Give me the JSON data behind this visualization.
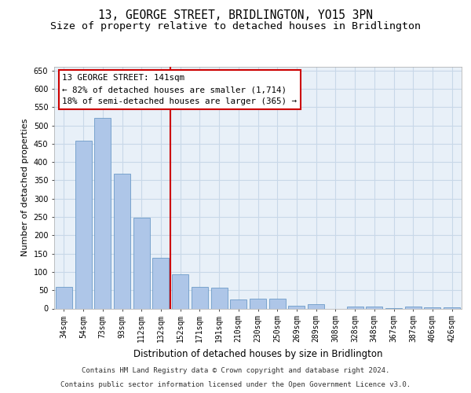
{
  "title": "13, GEORGE STREET, BRIDLINGTON, YO15 3PN",
  "subtitle": "Size of property relative to detached houses in Bridlington",
  "xlabel": "Distribution of detached houses by size in Bridlington",
  "ylabel": "Number of detached properties",
  "categories": [
    "34sqm",
    "54sqm",
    "73sqm",
    "93sqm",
    "112sqm",
    "132sqm",
    "152sqm",
    "171sqm",
    "191sqm",
    "210sqm",
    "230sqm",
    "250sqm",
    "269sqm",
    "289sqm",
    "308sqm",
    "328sqm",
    "348sqm",
    "367sqm",
    "387sqm",
    "406sqm",
    "426sqm"
  ],
  "values": [
    60,
    458,
    520,
    368,
    248,
    138,
    93,
    60,
    56,
    25,
    26,
    26,
    8,
    12,
    0,
    6,
    5,
    2,
    6,
    3,
    4
  ],
  "bar_color": "#aec6e8",
  "bar_edge_color": "#5a8fc0",
  "grid_color": "#c8d8e8",
  "bg_color": "#e8f0f8",
  "vline_x": 5.5,
  "vline_color": "#cc0000",
  "annotation_text": "13 GEORGE STREET: 141sqm\n← 82% of detached houses are smaller (1,714)\n18% of semi-detached houses are larger (365) →",
  "annotation_box_edgecolor": "#cc0000",
  "ylim": [
    0,
    660
  ],
  "yticks": [
    0,
    50,
    100,
    150,
    200,
    250,
    300,
    350,
    400,
    450,
    500,
    550,
    600,
    650
  ],
  "footer_line1": "Contains HM Land Registry data © Crown copyright and database right 2024.",
  "footer_line2": "Contains public sector information licensed under the Open Government Licence v3.0.",
  "title_fontsize": 10.5,
  "subtitle_fontsize": 9.5,
  "tick_fontsize": 7,
  "ylabel_fontsize": 8,
  "xlabel_fontsize": 8.5,
  "ann_fontsize": 7.8,
  "footer_fontsize": 6.5
}
